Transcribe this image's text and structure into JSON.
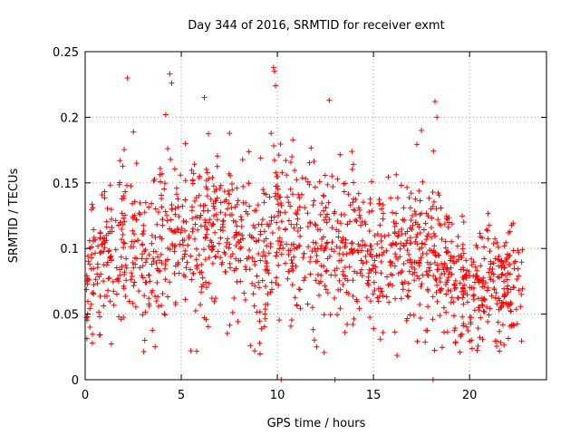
{
  "chart_data": {
    "type": "scatter",
    "title": "Day 344 of 2016, SRMTID for receiver exmt",
    "xlabel": "GPS time / hours",
    "ylabel": "SRMTID / TECUs",
    "xlim": [
      0,
      24
    ],
    "ylim": [
      0,
      0.25
    ],
    "x_ticks": [
      "0",
      "5",
      "10",
      "15",
      "20"
    ],
    "x_tick_values": [
      0,
      5,
      10,
      15,
      20
    ],
    "y_ticks": [
      "0",
      "0.05",
      "0.1",
      "0.15",
      "0.2",
      "0.25"
    ],
    "y_tick_values": [
      0,
      0.05,
      0.1,
      0.15,
      0.2,
      0.25
    ],
    "grid": true,
    "marker": "+",
    "series": [
      {
        "name": "SRMTID",
        "color": "#ff0000",
        "profile": [
          {
            "x": 0.0,
            "mean": 0.072,
            "spread": 0.032
          },
          {
            "x": 1.0,
            "mean": 0.095,
            "spread": 0.04
          },
          {
            "x": 2.0,
            "mean": 0.105,
            "spread": 0.045
          },
          {
            "x": 3.0,
            "mean": 0.09,
            "spread": 0.04
          },
          {
            "x": 4.0,
            "mean": 0.1,
            "spread": 0.045
          },
          {
            "x": 5.0,
            "mean": 0.11,
            "spread": 0.04
          },
          {
            "x": 6.0,
            "mean": 0.115,
            "spread": 0.045
          },
          {
            "x": 7.0,
            "mean": 0.11,
            "spread": 0.045
          },
          {
            "x": 8.0,
            "mean": 0.11,
            "spread": 0.04
          },
          {
            "x": 9.0,
            "mean": 0.1,
            "spread": 0.045
          },
          {
            "x": 10.0,
            "mean": 0.11,
            "spread": 0.045
          },
          {
            "x": 11.0,
            "mean": 0.11,
            "spread": 0.045
          },
          {
            "x": 12.0,
            "mean": 0.1,
            "spread": 0.04
          },
          {
            "x": 13.0,
            "mean": 0.105,
            "spread": 0.04
          },
          {
            "x": 14.0,
            "mean": 0.1,
            "spread": 0.04
          },
          {
            "x": 15.0,
            "mean": 0.095,
            "spread": 0.04
          },
          {
            "x": 16.0,
            "mean": 0.095,
            "spread": 0.04
          },
          {
            "x": 17.0,
            "mean": 0.1,
            "spread": 0.04
          },
          {
            "x": 18.0,
            "mean": 0.105,
            "spread": 0.045
          },
          {
            "x": 19.0,
            "mean": 0.075,
            "spread": 0.03
          },
          {
            "x": 20.0,
            "mean": 0.07,
            "spread": 0.03
          },
          {
            "x": 21.0,
            "mean": 0.07,
            "spread": 0.03
          },
          {
            "x": 22.0,
            "mean": 0.072,
            "spread": 0.03
          },
          {
            "x": 22.8,
            "mean": 0.075,
            "spread": 0.03
          }
        ],
        "generated_point_count": 1500,
        "notable_points": [
          {
            "x": 2.2,
            "y": 0.23
          },
          {
            "x": 4.4,
            "y": 0.233
          },
          {
            "x": 4.5,
            "y": 0.226
          },
          {
            "x": 6.2,
            "y": 0.215
          },
          {
            "x": 9.8,
            "y": 0.238
          },
          {
            "x": 9.85,
            "y": 0.235
          },
          {
            "x": 9.9,
            "y": 0.224
          },
          {
            "x": 12.7,
            "y": 0.213
          },
          {
            "x": 18.2,
            "y": 0.212
          },
          {
            "x": 18.3,
            "y": 0.2
          },
          {
            "x": 17.5,
            "y": 0.19
          },
          {
            "x": 5.5,
            "y": 0.022
          },
          {
            "x": 8.6,
            "y": 0.026
          },
          {
            "x": 19.5,
            "y": 0.021
          },
          {
            "x": 3.1,
            "y": 0.03
          }
        ],
        "zero_points": [
          10.2,
          13.0,
          18.1
        ]
      }
    ]
  }
}
